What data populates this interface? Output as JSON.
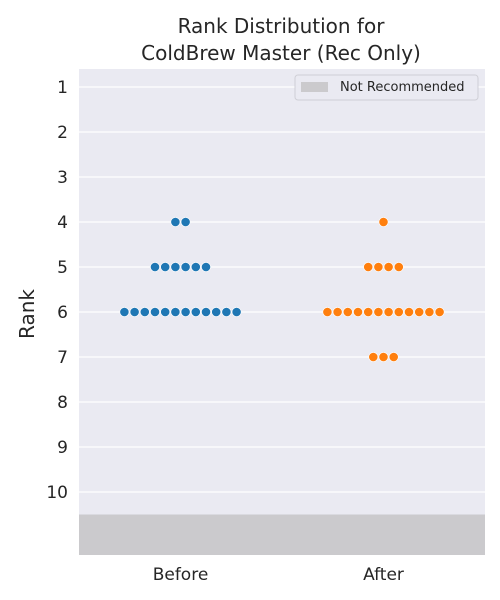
{
  "chart_data": {
    "type": "scatter",
    "title": "Rank Distribution for\nColdBrew Master (Rec Only)",
    "xlabel": "",
    "ylabel": "Rank",
    "categories": [
      "Before",
      "After"
    ],
    "y_ticks": [
      1,
      2,
      3,
      4,
      5,
      6,
      7,
      8,
      9,
      10
    ],
    "ylim": [
      0.6,
      11.4
    ],
    "y_inverted": true,
    "not_recommended_band": [
      10.5,
      11.4
    ],
    "grid": true,
    "legend": {
      "position": "top-right",
      "entries": [
        {
          "label": "Not Recommended",
          "color": "#cbcacd"
        }
      ]
    },
    "series": [
      {
        "category": "Before",
        "color": "#1f77b4",
        "counts": {
          "4": 2,
          "5": 6,
          "6": 12
        }
      },
      {
        "category": "After",
        "color": "#ff7f0e",
        "counts": {
          "4": 1,
          "5": 4,
          "6": 12,
          "7": 3
        }
      }
    ]
  }
}
